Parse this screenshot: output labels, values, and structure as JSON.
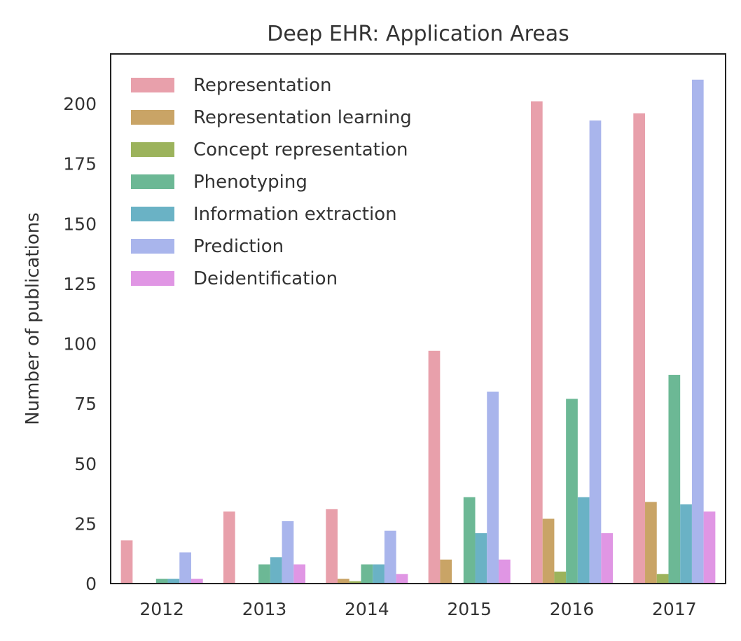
{
  "chart_data": {
    "type": "bar",
    "title": "Deep EHR: Application Areas",
    "xlabel": "",
    "ylabel": "Number of publications",
    "categories": [
      "2012",
      "2013",
      "2014",
      "2015",
      "2016",
      "2017"
    ],
    "ylim": [
      0,
      220
    ],
    "yticks": [
      "0",
      "25",
      "50",
      "75",
      "100",
      "125",
      "150",
      "175",
      "200"
    ],
    "grid": false,
    "legend_position": "top-left",
    "series": [
      {
        "name": "Representation",
        "color": "#e8a0ab",
        "values": [
          18,
          30,
          31,
          97,
          201,
          196
        ]
      },
      {
        "name": "Representation learning",
        "color": "#c9a466",
        "values": [
          0,
          0,
          2,
          10,
          27,
          34
        ]
      },
      {
        "name": "Concept representation",
        "color": "#9cb35c",
        "values": [
          0,
          0,
          1,
          0,
          5,
          4
        ]
      },
      {
        "name": "Phenotyping",
        "color": "#6cb895",
        "values": [
          2,
          8,
          8,
          36,
          77,
          87
        ]
      },
      {
        "name": "Information extraction",
        "color": "#6ab2c5",
        "values": [
          2,
          11,
          8,
          21,
          36,
          33
        ]
      },
      {
        "name": "Prediction",
        "color": "#a9b5ec",
        "values": [
          13,
          26,
          22,
          80,
          193,
          210
        ]
      },
      {
        "name": "Deidentification",
        "color": "#e096e4",
        "values": [
          2,
          8,
          4,
          10,
          21,
          30
        ]
      }
    ]
  }
}
